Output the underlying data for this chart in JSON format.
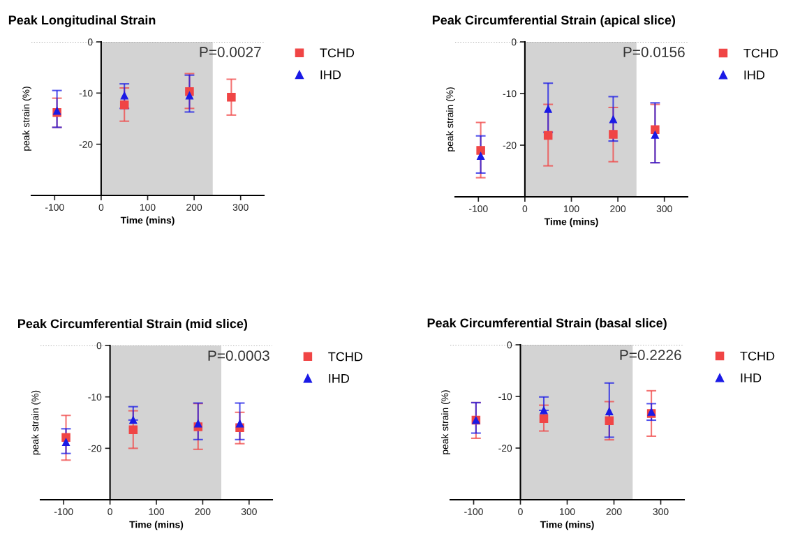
{
  "chart_data": [
    {
      "type": "scatter",
      "title": "Peak Longitudinal Strain",
      "xlabel": "Time (mins)",
      "ylabel": "peak strain (%)",
      "xlim": [
        -150,
        350
      ],
      "ylim": [
        -30,
        0
      ],
      "xticks": [
        -100,
        0,
        100,
        200,
        300
      ],
      "yticks": [
        -20,
        -10,
        0
      ],
      "x": [
        -95,
        50,
        190,
        280
      ],
      "grid": false,
      "legend": "right",
      "annotations": [
        "P=0.0027"
      ],
      "ref_lines": [
        {
          "axis": "y",
          "value": 0,
          "label": null,
          "color": "#999999",
          "line_style": "dotted"
        }
      ],
      "bands": [
        {
          "axis": "x",
          "from": 0,
          "to": 240,
          "label": null,
          "color": "#d3d3d3"
        }
      ],
      "series": [
        {
          "name": "TCHD",
          "color": "#f04545",
          "marker": "square",
          "values": [
            -13.8,
            -12.3,
            -9.7,
            -10.8
          ],
          "errors": [
            [
              -16.7,
              -11.0
            ],
            [
              -15.5,
              -9.0
            ],
            [
              -13.0,
              -6.2
            ],
            [
              -14.3,
              -7.3
            ]
          ]
        },
        {
          "name": "IHD",
          "color": "#1a1ae6",
          "marker": "triangle",
          "values": [
            -13.5,
            -10.5,
            -10.5,
            null
          ],
          "errors": [
            [
              -16.7,
              -9.5
            ],
            [
              -13.0,
              -8.2
            ],
            [
              -13.7,
              -6.5
            ],
            null
          ]
        }
      ]
    },
    {
      "type": "scatter",
      "title": "Peak Circumferential Strain (apical slice)",
      "xlabel": "Time (mins)",
      "ylabel": "peak strain (%)",
      "xlim": [
        -150,
        350
      ],
      "ylim": [
        -30,
        0
      ],
      "xticks": [
        -100,
        0,
        100,
        200,
        300
      ],
      "yticks": [
        -20,
        -10,
        0
      ],
      "x": [
        -95,
        50,
        190,
        280
      ],
      "grid": false,
      "legend": "right",
      "annotations": [
        "P=0.0156"
      ],
      "ref_lines": [
        {
          "axis": "y",
          "value": 0,
          "label": null,
          "color": "#999999",
          "line_style": "dotted"
        }
      ],
      "bands": [
        {
          "axis": "x",
          "from": 0,
          "to": 240,
          "label": null,
          "color": "#d3d3d3"
        }
      ],
      "series": [
        {
          "name": "TCHD",
          "color": "#f04545",
          "marker": "square",
          "values": [
            -21.0,
            -18.1,
            -17.9,
            -17.0
          ],
          "errors": [
            [
              -26.3,
              -15.6
            ],
            [
              -24.0,
              -12.1
            ],
            [
              -23.2,
              -12.7
            ],
            [
              -23.4,
              -12.1
            ]
          ]
        },
        {
          "name": "IHD",
          "color": "#1a1ae6",
          "marker": "triangle",
          "values": [
            -22.1,
            -13.0,
            -15.0,
            -18.0
          ],
          "errors": [
            [
              -25.4,
              -18.2
            ],
            [
              -17.5,
              -8.0
            ],
            [
              -19.2,
              -10.6
            ],
            [
              -23.4,
              -11.8
            ]
          ]
        }
      ]
    },
    {
      "type": "scatter",
      "title": "Peak Circumferential Strain (mid slice)",
      "xlabel": "Time (mins)",
      "ylabel": "peak strain (%)",
      "xlim": [
        -150,
        350
      ],
      "ylim": [
        -30,
        0
      ],
      "xticks": [
        -100,
        0,
        100,
        200,
        300
      ],
      "yticks": [
        -20,
        -10,
        0
      ],
      "x": [
        -95,
        50,
        190,
        280
      ],
      "grid": false,
      "legend": "right",
      "annotations": [
        "P=0.0003"
      ],
      "ref_lines": [
        {
          "axis": "y",
          "value": 0,
          "label": null,
          "color": "#999999",
          "line_style": "dotted"
        }
      ],
      "bands": [
        {
          "axis": "x",
          "from": 0,
          "to": 240,
          "label": null,
          "color": "#d3d3d3"
        }
      ],
      "series": [
        {
          "name": "TCHD",
          "color": "#f04545",
          "marker": "square",
          "values": [
            -17.9,
            -16.4,
            -15.8,
            -16.0
          ],
          "errors": [
            [
              -22.3,
              -13.6
            ],
            [
              -20.0,
              -12.7
            ],
            [
              -20.2,
              -11.3
            ],
            [
              -19.1,
              -13.0
            ]
          ]
        },
        {
          "name": "IHD",
          "color": "#1a1ae6",
          "marker": "triangle",
          "values": [
            -18.8,
            -14.5,
            -15.2,
            -15.2
          ],
          "errors": [
            [
              -21.0,
              -16.2
            ],
            [
              -14.5,
              -11.9
            ],
            [
              -18.3,
              -11.2
            ],
            [
              -18.3,
              -11.2
            ]
          ]
        }
      ]
    },
    {
      "type": "scatter",
      "title": "Peak Circumferential Strain (basal slice)",
      "xlabel": "Time (mins)",
      "ylabel": "peak strain (%)",
      "xlim": [
        -150,
        350
      ],
      "ylim": [
        -30,
        0
      ],
      "xticks": [
        -100,
        0,
        100,
        200,
        300
      ],
      "yticks": [
        -20,
        -10,
        0
      ],
      "x": [
        -95,
        50,
        190,
        280
      ],
      "grid": false,
      "legend": "right",
      "annotations": [
        "P=0.2226"
      ],
      "ref_lines": [
        {
          "axis": "y",
          "value": 0,
          "label": null,
          "color": "#999999",
          "line_style": "dotted"
        }
      ],
      "bands": [
        {
          "axis": "x",
          "from": 0,
          "to": 240,
          "label": null,
          "color": "#d3d3d3"
        }
      ],
      "series": [
        {
          "name": "TCHD",
          "color": "#f04545",
          "marker": "square",
          "values": [
            -14.6,
            -14.3,
            -14.7,
            -13.3
          ],
          "errors": [
            [
              -18.1,
              -11.2
            ],
            [
              -16.7,
              -11.7
            ],
            [
              -18.4,
              -11.0
            ],
            [
              -17.7,
              -8.9
            ]
          ]
        },
        {
          "name": "IHD",
          "color": "#1a1ae6",
          "marker": "triangle",
          "values": [
            -14.6,
            -12.7,
            -12.9,
            -13.0
          ],
          "errors": [
            [
              -17.1,
              -11.2
            ],
            [
              -12.7,
              -10.1
            ],
            [
              -17.9,
              -7.4
            ],
            [
              -14.6,
              -11.4
            ]
          ]
        }
      ]
    }
  ]
}
